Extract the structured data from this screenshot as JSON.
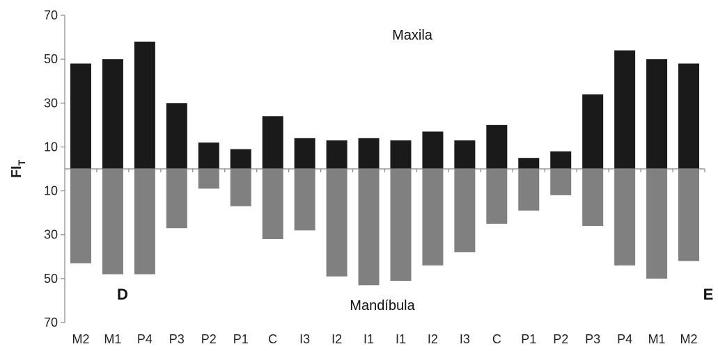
{
  "chart_data": {
    "type": "bar",
    "ylabel": "FI",
    "ylabel_subscript": "T",
    "y_ticks": [
      "70",
      "50",
      "30",
      "10",
      "10",
      "30",
      "50",
      "70"
    ],
    "ylim": [
      -70,
      70
    ],
    "categories": [
      "M2",
      "M1",
      "P4",
      "P3",
      "P2",
      "P1",
      "C",
      "I3",
      "I2",
      "I1",
      "I1",
      "I2",
      "I3",
      "C",
      "P1",
      "P2",
      "P3",
      "P4",
      "M1",
      "M2"
    ],
    "series": [
      {
        "name": "Maxila",
        "color": "#1a1a1a",
        "values": [
          48,
          50,
          58,
          30,
          12,
          9,
          24,
          14,
          13,
          14,
          13,
          17,
          13,
          20,
          5,
          8,
          34,
          54,
          50,
          48
        ]
      },
      {
        "name": "Mandíbula",
        "color": "#808080",
        "values": [
          43,
          48,
          48,
          27,
          9,
          17,
          32,
          28,
          49,
          53,
          51,
          44,
          38,
          25,
          19,
          12,
          26,
          44,
          50,
          42
        ]
      }
    ],
    "annotations": {
      "top": "Maxila",
      "bottom": "Mandíbula",
      "left": "D",
      "right": "E"
    },
    "grid": false,
    "legend": "none"
  }
}
